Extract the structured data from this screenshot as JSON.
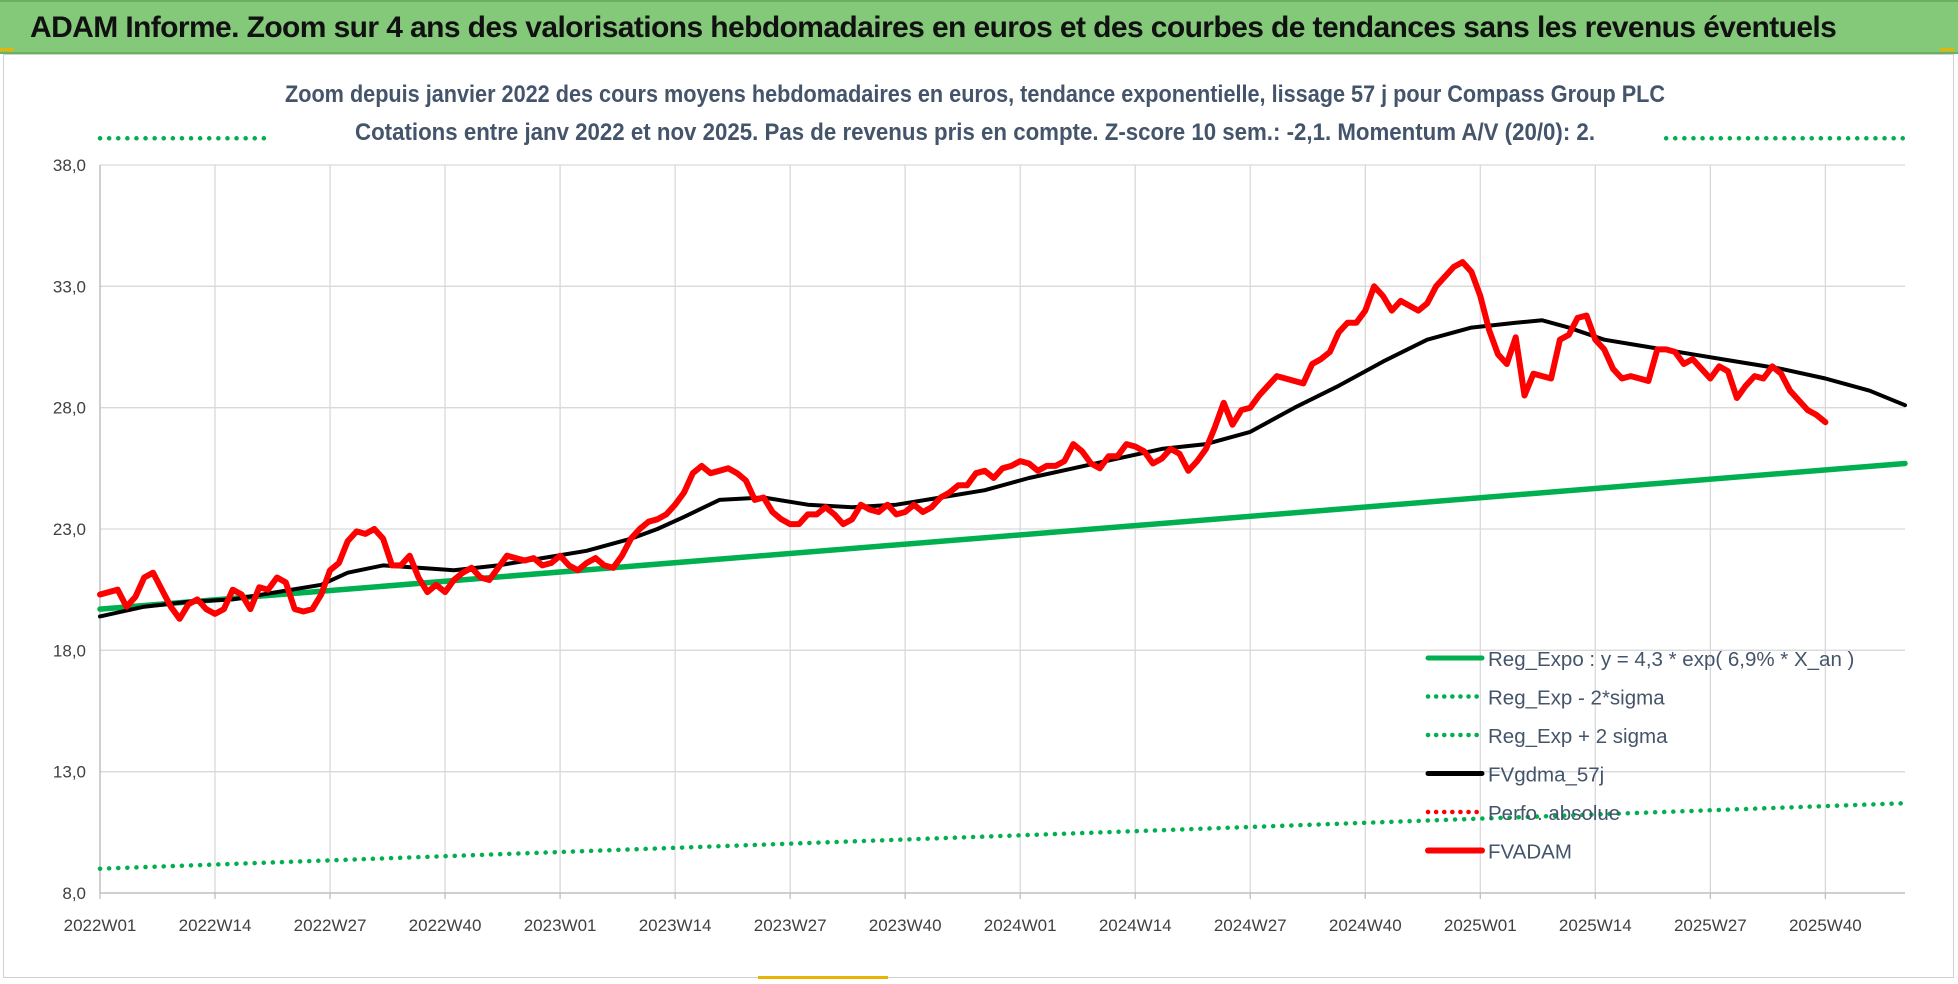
{
  "header": {
    "title": "ADAM Informe. Zoom sur 4 ans des valorisations hebdomadaires en euros et des courbes de tendances sans les revenus éventuels"
  },
  "colors": {
    "banner": "#84c97a",
    "trend_green": "#00b050",
    "price_red": "#ff0000",
    "smooth_black": "#000000",
    "grid": "#d9d9d9",
    "text": "#44546a"
  },
  "chart_data": {
    "type": "line",
    "title": "Zoom depuis janvier 2022 des cours moyens hebdomadaires en euros, tendance exponentielle, lissage 57 j pour Compass Group PLC",
    "subtitle": "Cotations entre janv 2022 et nov 2025. Pas de revenus pris en compte. Z-score 10 sem.: -2,1. Momentum A/V (20/0): 2.",
    "xlabel": "",
    "ylabel": "",
    "ylim": [
      8.0,
      38.0
    ],
    "y_ticks": [
      "8,0",
      "13,0",
      "18,0",
      "23,0",
      "28,0",
      "33,0",
      "38,0"
    ],
    "x_ticks": [
      "2022W01",
      "2022W14",
      "2022W27",
      "2022W40",
      "2023W01",
      "2023W14",
      "2023W27",
      "2023W40",
      "2024W01",
      "2024W14",
      "2024W27",
      "2024W40",
      "2025W01",
      "2025W14",
      "2025W27",
      "2025W40"
    ],
    "x_tick_weeks": [
      0,
      13,
      26,
      39,
      52,
      65,
      78,
      91,
      104,
      117,
      130,
      143,
      156,
      169,
      182,
      195
    ],
    "x_range_weeks": [
      0,
      204
    ],
    "grid": true,
    "legend_position": "bottom-right",
    "series": [
      {
        "name": "Reg_Expo : y = 4,3 * exp( 6,9% *  X_an )",
        "style": "solid",
        "color": "#00b050",
        "points": [
          [
            0,
            19.7
          ],
          [
            204,
            25.7
          ]
        ]
      },
      {
        "name": "Reg_Exp - 2*sigma",
        "style": "dotted",
        "color": "#00b050",
        "points": [
          [
            0,
            9.0
          ],
          [
            204,
            11.7
          ]
        ]
      },
      {
        "name": "Reg_Exp + 2 sigma",
        "style": "dotted",
        "color": "#00b050",
        "points": [
          [
            0,
            39.1
          ],
          [
            19,
            39.1
          ],
          [
            null,
            null
          ],
          [
            177,
            39.1
          ],
          [
            204,
            39.1
          ]
        ]
      },
      {
        "name": "FVgdma_57j",
        "style": "solid",
        "color": "#000000",
        "points": [
          [
            0,
            19.4
          ],
          [
            5,
            19.8
          ],
          [
            10,
            20.0
          ],
          [
            15,
            20.1
          ],
          [
            20,
            20.4
          ],
          [
            25,
            20.7
          ],
          [
            28,
            21.2
          ],
          [
            32,
            21.5
          ],
          [
            36,
            21.4
          ],
          [
            40,
            21.3
          ],
          [
            45,
            21.5
          ],
          [
            50,
            21.8
          ],
          [
            55,
            22.1
          ],
          [
            60,
            22.6
          ],
          [
            63,
            23.0
          ],
          [
            66,
            23.5
          ],
          [
            70,
            24.2
          ],
          [
            75,
            24.3
          ],
          [
            80,
            24.0
          ],
          [
            85,
            23.9
          ],
          [
            90,
            24.0
          ],
          [
            95,
            24.3
          ],
          [
            100,
            24.6
          ],
          [
            105,
            25.1
          ],
          [
            110,
            25.5
          ],
          [
            115,
            25.9
          ],
          [
            120,
            26.3
          ],
          [
            125,
            26.5
          ],
          [
            130,
            27.0
          ],
          [
            135,
            28.0
          ],
          [
            140,
            28.9
          ],
          [
            145,
            29.9
          ],
          [
            150,
            30.8
          ],
          [
            155,
            31.3
          ],
          [
            160,
            31.5
          ],
          [
            163,
            31.6
          ],
          [
            166,
            31.3
          ],
          [
            170,
            30.8
          ],
          [
            175,
            30.5
          ],
          [
            180,
            30.2
          ],
          [
            185,
            29.9
          ],
          [
            190,
            29.6
          ],
          [
            195,
            29.2
          ],
          [
            200,
            28.7
          ],
          [
            204,
            28.1
          ]
        ]
      },
      {
        "name": "Perfo. absolue",
        "style": "dotted",
        "color": "#ff0000",
        "points": []
      },
      {
        "name": "FVADAM",
        "style": "solid",
        "color": "#ff0000",
        "points": [
          [
            0,
            20.3
          ],
          [
            2,
            20.5
          ],
          [
            3,
            19.8
          ],
          [
            4,
            20.2
          ],
          [
            5,
            21.0
          ],
          [
            6,
            21.2
          ],
          [
            7,
            20.5
          ],
          [
            8,
            19.8
          ],
          [
            9,
            19.3
          ],
          [
            10,
            19.9
          ],
          [
            11,
            20.1
          ],
          [
            12,
            19.7
          ],
          [
            13,
            19.5
          ],
          [
            14,
            19.7
          ],
          [
            15,
            20.5
          ],
          [
            16,
            20.3
          ],
          [
            17,
            19.7
          ],
          [
            18,
            20.6
          ],
          [
            19,
            20.5
          ],
          [
            20,
            21.0
          ],
          [
            21,
            20.8
          ],
          [
            22,
            19.7
          ],
          [
            23,
            19.6
          ],
          [
            24,
            19.7
          ],
          [
            25,
            20.3
          ],
          [
            26,
            21.3
          ],
          [
            27,
            21.6
          ],
          [
            28,
            22.5
          ],
          [
            29,
            22.9
          ],
          [
            30,
            22.8
          ],
          [
            31,
            23.0
          ],
          [
            32,
            22.6
          ],
          [
            33,
            21.5
          ],
          [
            34,
            21.5
          ],
          [
            35,
            21.9
          ],
          [
            36,
            21.0
          ],
          [
            37,
            20.4
          ],
          [
            38,
            20.7
          ],
          [
            39,
            20.4
          ],
          [
            40,
            20.9
          ],
          [
            41,
            21.2
          ],
          [
            42,
            21.4
          ],
          [
            43,
            21.0
          ],
          [
            44,
            20.9
          ],
          [
            45,
            21.4
          ],
          [
            46,
            21.9
          ],
          [
            47,
            21.8
          ],
          [
            48,
            21.7
          ],
          [
            49,
            21.8
          ],
          [
            50,
            21.5
          ],
          [
            51,
            21.6
          ],
          [
            52,
            21.9
          ],
          [
            53,
            21.5
          ],
          [
            54,
            21.3
          ],
          [
            55,
            21.6
          ],
          [
            56,
            21.8
          ],
          [
            57,
            21.5
          ],
          [
            58,
            21.4
          ],
          [
            59,
            21.9
          ],
          [
            60,
            22.6
          ],
          [
            61,
            23.0
          ],
          [
            62,
            23.3
          ],
          [
            63,
            23.4
          ],
          [
            64,
            23.6
          ],
          [
            65,
            24.0
          ],
          [
            66,
            24.5
          ],
          [
            67,
            25.3
          ],
          [
            68,
            25.6
          ],
          [
            69,
            25.3
          ],
          [
            70,
            25.4
          ],
          [
            71,
            25.5
          ],
          [
            72,
            25.3
          ],
          [
            73,
            25.0
          ],
          [
            74,
            24.2
          ],
          [
            75,
            24.3
          ],
          [
            76,
            23.7
          ],
          [
            77,
            23.4
          ],
          [
            78,
            23.2
          ],
          [
            79,
            23.2
          ],
          [
            80,
            23.6
          ],
          [
            81,
            23.6
          ],
          [
            82,
            23.9
          ],
          [
            83,
            23.6
          ],
          [
            84,
            23.2
          ],
          [
            85,
            23.4
          ],
          [
            86,
            24.0
          ],
          [
            87,
            23.8
          ],
          [
            88,
            23.7
          ],
          [
            89,
            24.0
          ],
          [
            90,
            23.6
          ],
          [
            91,
            23.7
          ],
          [
            92,
            24.0
          ],
          [
            93,
            23.7
          ],
          [
            94,
            23.9
          ],
          [
            95,
            24.3
          ],
          [
            96,
            24.5
          ],
          [
            97,
            24.8
          ],
          [
            98,
            24.8
          ],
          [
            99,
            25.3
          ],
          [
            100,
            25.4
          ],
          [
            101,
            25.1
          ],
          [
            102,
            25.5
          ],
          [
            103,
            25.6
          ],
          [
            104,
            25.8
          ],
          [
            105,
            25.7
          ],
          [
            106,
            25.4
          ],
          [
            107,
            25.6
          ],
          [
            108,
            25.6
          ],
          [
            109,
            25.8
          ],
          [
            110,
            26.5
          ],
          [
            111,
            26.2
          ],
          [
            112,
            25.7
          ],
          [
            113,
            25.5
          ],
          [
            114,
            26.0
          ],
          [
            115,
            26.0
          ],
          [
            116,
            26.5
          ],
          [
            117,
            26.4
          ],
          [
            118,
            26.2
          ],
          [
            119,
            25.7
          ],
          [
            120,
            25.9
          ],
          [
            121,
            26.3
          ],
          [
            122,
            26.1
          ],
          [
            123,
            25.4
          ],
          [
            124,
            25.8
          ],
          [
            125,
            26.3
          ],
          [
            126,
            27.2
          ],
          [
            127,
            28.2
          ],
          [
            128,
            27.3
          ],
          [
            129,
            27.9
          ],
          [
            130,
            28.0
          ],
          [
            131,
            28.5
          ],
          [
            132,
            28.9
          ],
          [
            133,
            29.3
          ],
          [
            134,
            29.2
          ],
          [
            135,
            29.1
          ],
          [
            136,
            29.0
          ],
          [
            137,
            29.8
          ],
          [
            138,
            30.0
          ],
          [
            139,
            30.3
          ],
          [
            140,
            31.1
          ],
          [
            141,
            31.5
          ],
          [
            142,
            31.5
          ],
          [
            143,
            32.0
          ],
          [
            144,
            33.0
          ],
          [
            145,
            32.6
          ],
          [
            146,
            32.0
          ],
          [
            147,
            32.4
          ],
          [
            148,
            32.2
          ],
          [
            149,
            32.0
          ],
          [
            150,
            32.3
          ],
          [
            151,
            33.0
          ],
          [
            152,
            33.4
          ],
          [
            153,
            33.8
          ],
          [
            154,
            34.0
          ],
          [
            155,
            33.6
          ],
          [
            156,
            32.6
          ],
          [
            157,
            31.2
          ],
          [
            158,
            30.2
          ],
          [
            159,
            29.8
          ],
          [
            160,
            30.9
          ],
          [
            161,
            28.5
          ],
          [
            162,
            29.4
          ],
          [
            163,
            29.3
          ],
          [
            164,
            29.2
          ],
          [
            165,
            30.8
          ],
          [
            166,
            31.0
          ],
          [
            167,
            31.7
          ],
          [
            168,
            31.8
          ],
          [
            169,
            30.8
          ],
          [
            170,
            30.4
          ],
          [
            171,
            29.6
          ],
          [
            172,
            29.2
          ],
          [
            173,
            29.3
          ],
          [
            174,
            29.2
          ],
          [
            175,
            29.1
          ],
          [
            176,
            30.4
          ],
          [
            177,
            30.4
          ],
          [
            178,
            30.3
          ],
          [
            179,
            29.8
          ],
          [
            180,
            30.0
          ],
          [
            181,
            29.6
          ],
          [
            182,
            29.2
          ],
          [
            183,
            29.7
          ],
          [
            184,
            29.5
          ],
          [
            185,
            28.4
          ],
          [
            186,
            28.9
          ],
          [
            187,
            29.3
          ],
          [
            188,
            29.2
          ],
          [
            189,
            29.7
          ],
          [
            190,
            29.4
          ],
          [
            191,
            28.7
          ],
          [
            192,
            28.3
          ],
          [
            193,
            27.9
          ],
          [
            194,
            27.7
          ],
          [
            195,
            27.4
          ]
        ]
      }
    ]
  }
}
